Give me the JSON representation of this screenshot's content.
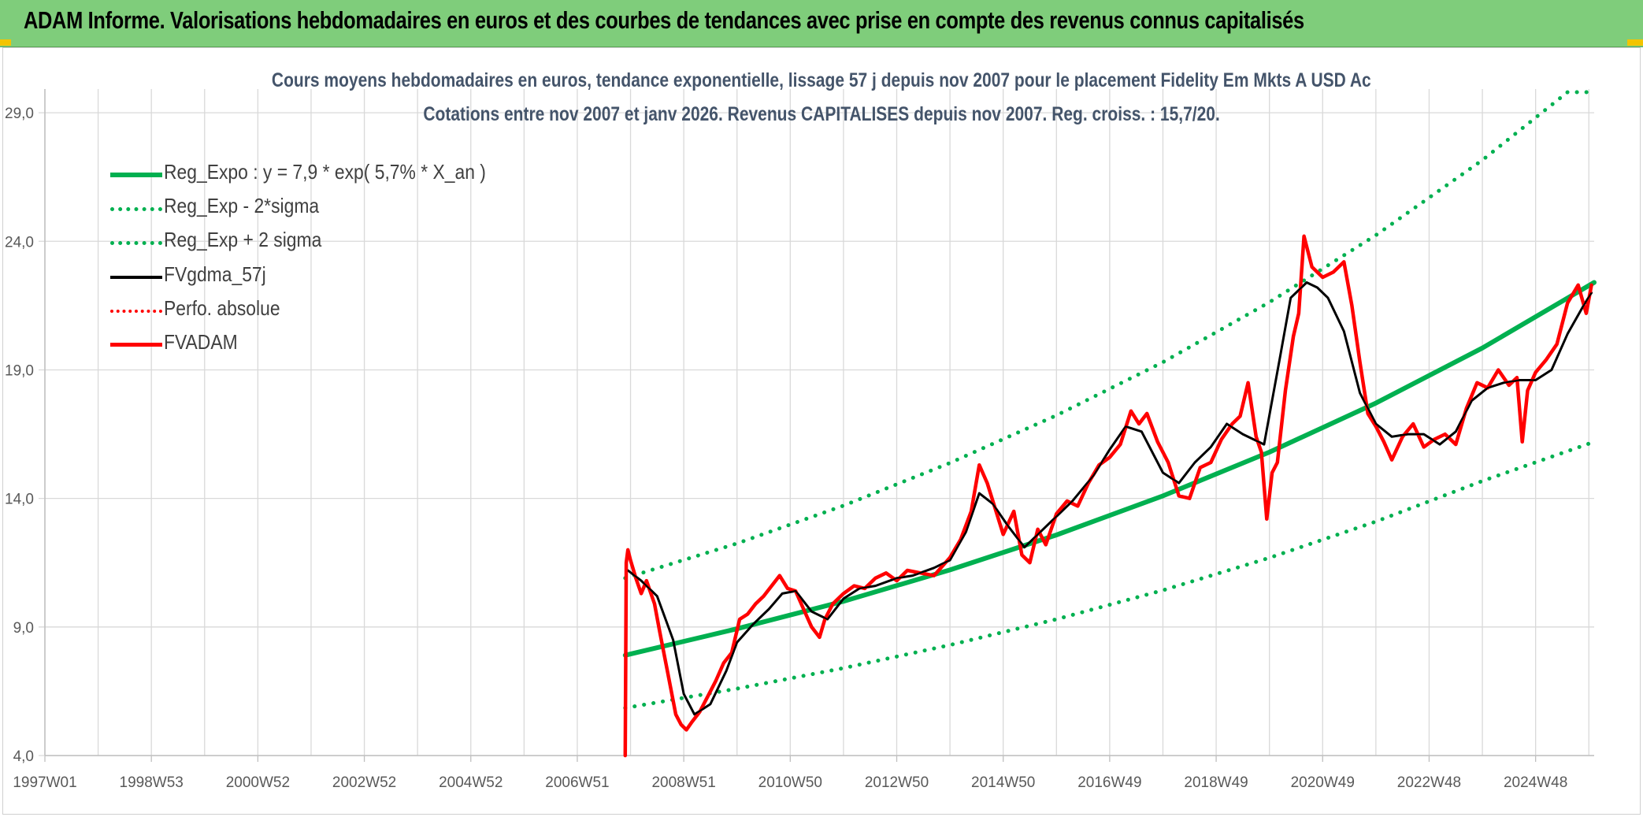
{
  "banner": {
    "title": "ADAM Informe. Valorisations hebdomadaires en euros et des courbes de tendances avec prise en compte des revenus connus capitalisés"
  },
  "colors": {
    "banner_bg": "#7fcd7b",
    "green": "#00b050",
    "red": "#ff0000",
    "black": "#000000",
    "grid": "#d9d9d9",
    "axis_text": "#595959",
    "title_text": "#44546a"
  },
  "chart_data": {
    "type": "line",
    "title": "Cours moyens hebdomadaires en euros, tendance exponentielle, lissage 57 j depuis nov 2007 pour le placement Fidelity Em Mkts A USD Ac",
    "subtitle": "Cotations entre nov 2007 et janv 2026. Revenus CAPITALISES depuis nov 2007. Reg. croiss. : 15,7/20.",
    "xlabel": "",
    "ylabel": "",
    "x_range": [
      1997.0,
      2026.1
    ],
    "ylim": [
      4.0,
      29.8
    ],
    "y_ticks": [
      4.0,
      9.0,
      14.0,
      19.0,
      24.0,
      29.0
    ],
    "y_tick_labels": [
      "4,0",
      "9,0",
      "14,0",
      "19,0",
      "24,0",
      "29,0"
    ],
    "x_ticks": [
      1997.0,
      1999.0,
      2001.0,
      2003.0,
      2005.0,
      2007.0,
      2009.0,
      2011.0,
      2013.0,
      2015.0,
      2017.0,
      2019.0,
      2021.0,
      2023.0,
      2025.0
    ],
    "x_tick_labels": [
      "1997W01",
      "1998W53",
      "2000W52",
      "2002W52",
      "2004W52",
      "2006W51",
      "2008W51",
      "2010W50",
      "2012W50",
      "2014W50",
      "2016W49",
      "2018W49",
      "2020W49",
      "2022W48",
      "2024W48"
    ],
    "grid": true,
    "legend_position": "top-left",
    "series": [
      {
        "name": "Reg_Expo : y = 7,9 * exp( 5,7% *  X_an )",
        "style": "solid-thick",
        "color": "#00b050",
        "x": [
          2007.9,
          2010,
          2012,
          2014,
          2016,
          2018,
          2020,
          2022,
          2024,
          2026.1
        ],
        "values": [
          7.9,
          8.93,
          10.0,
          11.22,
          12.58,
          14.1,
          15.8,
          17.71,
          19.85,
          22.4
        ]
      },
      {
        "name": "Reg_Exp - 2*sigma",
        "style": "dotted",
        "color": "#00b050",
        "x": [
          2007.9,
          2010,
          2012,
          2014,
          2016,
          2018,
          2020,
          2022,
          2024,
          2026.1
        ],
        "values": [
          5.85,
          6.6,
          7.4,
          8.3,
          9.3,
          10.43,
          11.69,
          13.1,
          14.68,
          16.2
        ]
      },
      {
        "name": "Reg_Exp + 2 sigma",
        "style": "dotted",
        "color": "#00b050",
        "x": [
          2007.9,
          2010,
          2012,
          2014,
          2016,
          2018,
          2020,
          2022,
          2024,
          2025.6,
          2026.1
        ],
        "values": [
          10.9,
          12.25,
          13.72,
          15.38,
          17.23,
          19.3,
          21.63,
          24.24,
          27.16,
          29.8,
          29.8
        ]
      },
      {
        "name": "FVgdma_57j",
        "style": "solid",
        "color": "#000000",
        "x": [
          2007.95,
          2008.2,
          2008.5,
          2008.8,
          2009.0,
          2009.2,
          2009.5,
          2009.8,
          2010.0,
          2010.3,
          2010.6,
          2010.85,
          2011.1,
          2011.4,
          2011.7,
          2012.0,
          2012.3,
          2012.6,
          2013.0,
          2013.3,
          2013.7,
          2014.0,
          2014.3,
          2014.55,
          2014.8,
          2015.1,
          2015.4,
          2015.7,
          2016.0,
          2016.3,
          2016.7,
          2017.0,
          2017.3,
          2017.6,
          2018.0,
          2018.3,
          2018.6,
          2018.9,
          2019.2,
          2019.5,
          2019.9,
          2020.2,
          2020.4,
          2020.7,
          2020.9,
          2021.1,
          2021.4,
          2021.7,
          2022.0,
          2022.3,
          2022.6,
          2022.9,
          2023.2,
          2023.5,
          2023.8,
          2024.1,
          2024.4,
          2024.7,
          2025.0,
          2025.3,
          2025.6,
          2025.9,
          2026.05
        ],
        "values": [
          11.2,
          10.8,
          10.2,
          8.5,
          6.4,
          5.6,
          6.0,
          7.3,
          8.4,
          9.1,
          9.7,
          10.3,
          10.4,
          9.6,
          9.3,
          10.1,
          10.5,
          10.6,
          10.9,
          11.0,
          11.3,
          11.6,
          12.7,
          14.2,
          13.8,
          12.9,
          12.1,
          12.7,
          13.3,
          13.9,
          14.9,
          15.9,
          16.8,
          16.6,
          15.0,
          14.6,
          15.4,
          16.0,
          16.9,
          16.5,
          16.1,
          19.5,
          21.8,
          22.4,
          22.2,
          21.8,
          20.5,
          18.1,
          16.9,
          16.4,
          16.5,
          16.5,
          16.1,
          16.6,
          17.8,
          18.3,
          18.5,
          18.6,
          18.6,
          19.0,
          20.4,
          21.5,
          22.0
        ]
      },
      {
        "name": "Perfo. absolue",
        "style": "dotted",
        "color": "#ff0000",
        "x": [],
        "values": []
      },
      {
        "name": "FVADAM",
        "style": "solid-thick",
        "color": "#ff0000",
        "x": [
          2007.9,
          2007.92,
          2007.95,
          2008.0,
          2008.1,
          2008.2,
          2008.3,
          2008.45,
          2008.55,
          2008.7,
          2008.85,
          2008.95,
          2009.05,
          2009.15,
          2009.3,
          2009.45,
          2009.6,
          2009.75,
          2009.9,
          2010.05,
          2010.2,
          2010.35,
          2010.5,
          2010.65,
          2010.8,
          2010.95,
          2011.1,
          2011.25,
          2011.4,
          2011.55,
          2011.65,
          2011.8,
          2012.0,
          2012.2,
          2012.4,
          2012.6,
          2012.8,
          2013.0,
          2013.2,
          2013.45,
          2013.7,
          2014.0,
          2014.2,
          2014.4,
          2014.55,
          2014.7,
          2014.85,
          2015.0,
          2015.2,
          2015.35,
          2015.5,
          2015.65,
          2015.8,
          2016.0,
          2016.2,
          2016.4,
          2016.6,
          2016.8,
          2017.0,
          2017.2,
          2017.4,
          2017.55,
          2017.7,
          2017.9,
          2018.1,
          2018.3,
          2018.5,
          2018.7,
          2018.9,
          2019.1,
          2019.3,
          2019.45,
          2019.6,
          2019.75,
          2019.85,
          2019.95,
          2020.05,
          2020.15,
          2020.3,
          2020.45,
          2020.55,
          2020.65,
          2020.8,
          2021.0,
          2021.2,
          2021.4,
          2021.55,
          2021.7,
          2021.85,
          2022.0,
          2022.15,
          2022.3,
          2022.5,
          2022.7,
          2022.9,
          2023.1,
          2023.3,
          2023.5,
          2023.7,
          2023.9,
          2024.1,
          2024.3,
          2024.5,
          2024.65,
          2024.75,
          2024.85,
          2025.0,
          2025.2,
          2025.4,
          2025.6,
          2025.8,
          2025.95,
          2026.05
        ],
        "values": [
          4.0,
          11.5,
          12.0,
          11.6,
          10.9,
          10.3,
          10.8,
          9.9,
          8.8,
          7.2,
          5.6,
          5.2,
          5.0,
          5.3,
          5.7,
          6.3,
          6.9,
          7.6,
          8.0,
          9.3,
          9.5,
          9.9,
          10.2,
          10.6,
          11.0,
          10.5,
          10.4,
          9.7,
          9.0,
          8.6,
          9.3,
          9.9,
          10.3,
          10.6,
          10.5,
          10.9,
          11.1,
          10.8,
          11.2,
          11.1,
          11.0,
          11.7,
          12.4,
          13.5,
          15.3,
          14.6,
          13.6,
          12.6,
          13.5,
          11.8,
          11.5,
          12.8,
          12.2,
          13.4,
          13.9,
          13.7,
          14.6,
          15.3,
          15.6,
          16.1,
          17.4,
          16.9,
          17.3,
          16.2,
          15.4,
          14.1,
          14.0,
          15.2,
          15.4,
          16.3,
          16.9,
          17.2,
          18.5,
          16.4,
          15.8,
          13.2,
          15.0,
          15.4,
          18.2,
          20.3,
          21.2,
          24.2,
          23.0,
          22.6,
          22.8,
          23.2,
          21.5,
          19.3,
          17.3,
          16.8,
          16.2,
          15.5,
          16.4,
          16.9,
          16.0,
          16.3,
          16.5,
          16.1,
          17.5,
          18.5,
          18.3,
          19.0,
          18.4,
          18.7,
          16.2,
          18.2,
          18.9,
          19.4,
          20.0,
          21.6,
          22.3,
          21.2,
          22.3
        ]
      }
    ]
  }
}
